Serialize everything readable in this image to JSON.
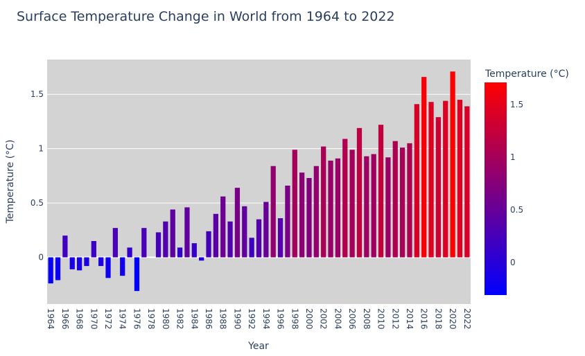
{
  "chart_data": {
    "type": "bar",
    "title": "Surface Temperature Change in World from 1964 to 2022",
    "xlabel": "Year",
    "ylabel": "Temperature (°C)",
    "colorbar_title": "Temperature (°C)",
    "colorscale": [
      "#0000ff",
      "#ff0000"
    ],
    "color_range": [
      -0.31,
      1.71
    ],
    "ylim": [
      -0.43,
      1.82
    ],
    "y_ticks": [
      0,
      0.5,
      1,
      1.5
    ],
    "y_tick_labels": [
      "0",
      "0.5",
      "1",
      "1.5"
    ],
    "colorbar_ticks": [
      0,
      0.5,
      1,
      1.5
    ],
    "colorbar_tick_labels": [
      "0",
      "0.5",
      "1",
      "1.5"
    ],
    "x_tick_labels": [
      "1964",
      "1966",
      "1968",
      "1970",
      "1972",
      "1974",
      "1976",
      "1978",
      "1980",
      "1982",
      "1984",
      "1986",
      "1988",
      "1990",
      "1992",
      "1994",
      "1996",
      "1998",
      "2000",
      "2002",
      "2004",
      "2006",
      "2008",
      "2010",
      "2012",
      "2014",
      "2016",
      "2018",
      "2020",
      "2022"
    ],
    "grid": true,
    "background": "#d3d3d3",
    "x": [
      1964,
      1965,
      1966,
      1967,
      1968,
      1969,
      1970,
      1971,
      1972,
      1973,
      1974,
      1975,
      1976,
      1977,
      1978,
      1979,
      1980,
      1981,
      1982,
      1983,
      1984,
      1985,
      1986,
      1987,
      1988,
      1989,
      1990,
      1991,
      1992,
      1993,
      1994,
      1995,
      1996,
      1997,
      1998,
      1999,
      2000,
      2001,
      2002,
      2003,
      2004,
      2005,
      2006,
      2007,
      2008,
      2009,
      2010,
      2011,
      2012,
      2013,
      2014,
      2015,
      2016,
      2017,
      2018,
      2019,
      2020,
      2021,
      2022
    ],
    "values": [
      -0.24,
      -0.21,
      0.2,
      -0.11,
      -0.12,
      -0.08,
      0.15,
      -0.08,
      -0.19,
      0.27,
      -0.17,
      0.09,
      -0.31,
      0.27,
      0.0,
      0.23,
      0.33,
      0.44,
      0.09,
      0.46,
      0.13,
      -0.03,
      0.24,
      0.4,
      0.56,
      0.33,
      0.64,
      0.47,
      0.18,
      0.35,
      0.51,
      0.84,
      0.36,
      0.66,
      0.99,
      0.78,
      0.73,
      0.84,
      1.02,
      0.89,
      0.91,
      1.09,
      0.99,
      1.19,
      0.93,
      0.95,
      1.22,
      0.92,
      1.07,
      1.01,
      1.05,
      1.41,
      1.66,
      1.43,
      1.29,
      1.44,
      1.71,
      1.45,
      1.39
    ]
  }
}
